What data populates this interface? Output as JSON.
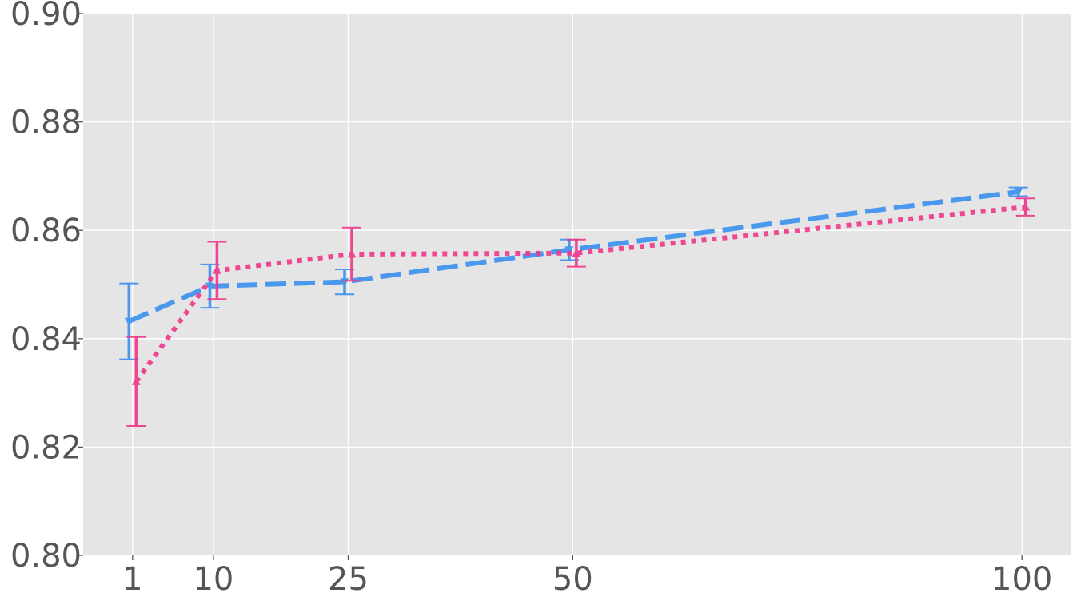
{
  "chart_data": {
    "type": "line",
    "title": "",
    "xlabel": "",
    "ylabel": "",
    "x": [
      1,
      10,
      25,
      50,
      100
    ],
    "x_tick_labels": [
      "1",
      "10",
      "25",
      "50",
      "100"
    ],
    "y_ticks": [
      0.8,
      0.82,
      0.84,
      0.86,
      0.88,
      0.9
    ],
    "y_tick_labels": [
      "0.80",
      "0.82",
      "0.84",
      "0.86",
      "0.88",
      "0.90"
    ],
    "xlim": [
      -4.5,
      105.5
    ],
    "ylim": [
      0.8,
      0.9
    ],
    "grid": true,
    "legend": "none",
    "series": [
      {
        "color": "#3a8ff0",
        "line_style": "dashed",
        "marker": "triangle-down",
        "x_offset": -0.4,
        "values": [
          0.8432,
          0.8497,
          0.8505,
          0.8564,
          0.8671
        ],
        "error": [
          0.007,
          0.004,
          0.0023,
          0.0019,
          0.0008
        ]
      },
      {
        "color": "#f0378a",
        "line_style": "dotted",
        "marker": "triangle-up",
        "x_offset": 0.4,
        "values": [
          0.8321,
          0.8526,
          0.8556,
          0.8558,
          0.8643
        ],
        "error": [
          0.0082,
          0.0053,
          0.0049,
          0.0025,
          0.0016
        ]
      }
    ]
  }
}
